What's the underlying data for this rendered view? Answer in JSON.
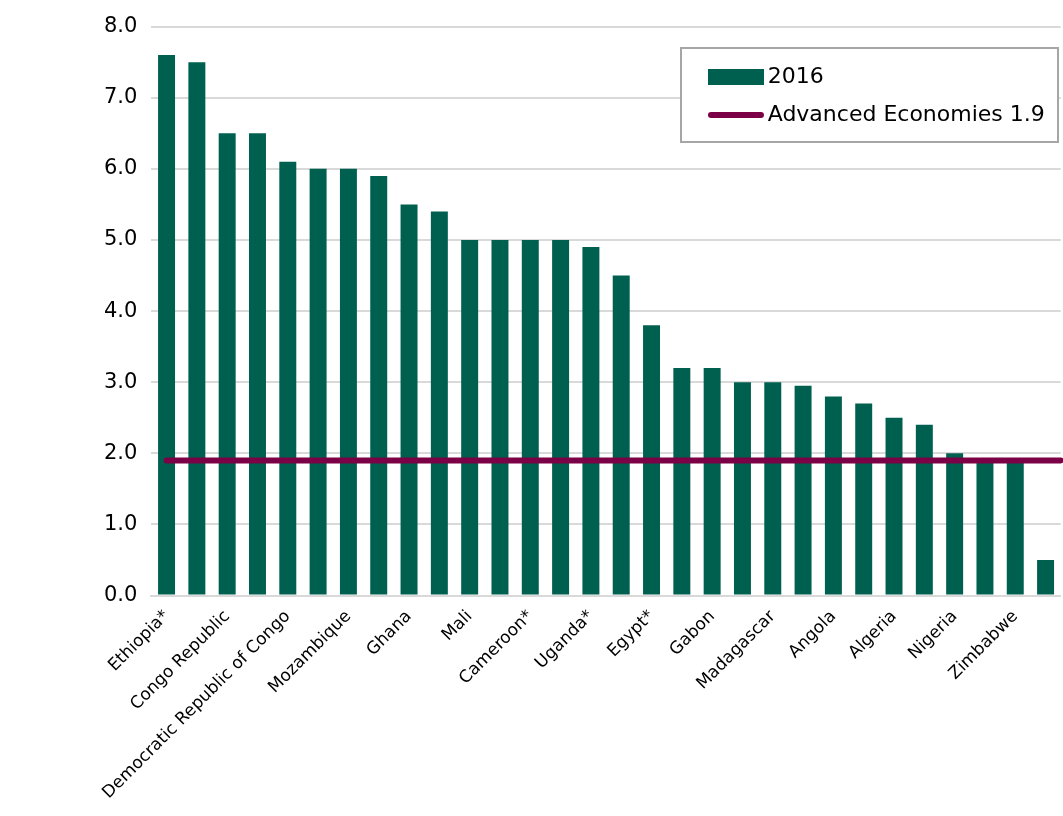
{
  "chart_data": {
    "type": "bar",
    "categories": [
      "Ethiopia*",
      null,
      "Congo Republic",
      null,
      "Democratic Republic of Congo",
      null,
      "Mozambique",
      null,
      "Ghana",
      null,
      "Mali",
      null,
      "Cameroon*",
      null,
      "Uganda*",
      null,
      "Egypt*",
      null,
      "Gabon",
      null,
      "Madagascar",
      null,
      "Angola",
      null,
      "Algeria",
      null,
      "Nigeria",
      null,
      "Zimbabwe",
      null
    ],
    "series": [
      {
        "name": "2016",
        "color": "#006050",
        "values": [
          7.6,
          7.5,
          6.5,
          6.5,
          6.1,
          6.0,
          6.0,
          5.9,
          5.5,
          5.4,
          5.0,
          5.0,
          5.0,
          5.0,
          4.9,
          4.5,
          3.8,
          3.2,
          3.2,
          3.0,
          3.0,
          2.95,
          2.8,
          2.7,
          2.5,
          2.4,
          2.0,
          1.9,
          1.9,
          0.5
        ]
      }
    ],
    "ref_lines": [
      {
        "axis": "y",
        "value": 1.9,
        "label": "Advanced Economies 1.9",
        "color": "#7b0046"
      }
    ],
    "ylim": [
      0,
      8
    ],
    "yticks": [
      {
        "value": 0,
        "label": "0.0"
      },
      {
        "value": 1,
        "label": "1.0"
      },
      {
        "value": 2,
        "label": "2.0"
      },
      {
        "value": 3,
        "label": "3.0"
      },
      {
        "value": 4,
        "label": "4.0"
      },
      {
        "value": 5,
        "label": "5.0"
      },
      {
        "value": 6,
        "label": "6.0"
      },
      {
        "value": 7,
        "label": "7.0"
      },
      {
        "value": 8,
        "label": "8.0"
      }
    ],
    "grid": "y",
    "legend": "top right"
  }
}
